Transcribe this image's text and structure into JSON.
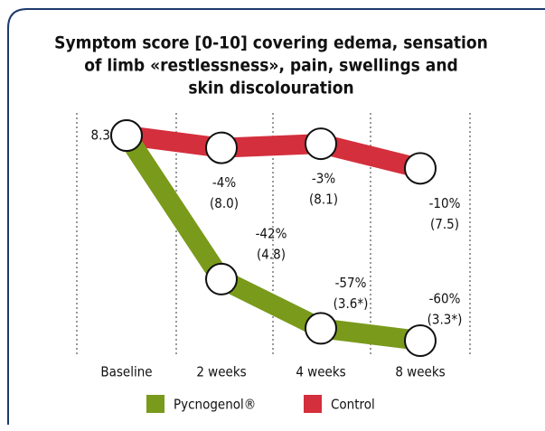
{
  "chart_data": {
    "type": "line",
    "title": [
      "Symptom score [0-10] covering edema, sensation",
      "of limb «restlessness», pain, swellings and",
      "skin discolouration"
    ],
    "categories": [
      "Baseline",
      "2 weeks",
      "4 weeks",
      "8 weeks"
    ],
    "series": [
      {
        "name": "Control",
        "color": "#d42f3c",
        "values": [
          8.3,
          8.0,
          8.1,
          7.5
        ],
        "value_labels": [
          null,
          "(8.0)",
          "(8.1)",
          "(7.5)"
        ],
        "change_labels": [
          null,
          "-4%",
          "-3%",
          "-10%"
        ]
      },
      {
        "name": "Pycnogenol®",
        "color": "#7a9a1c",
        "values": [
          8.3,
          4.8,
          3.6,
          3.3
        ],
        "value_labels": [
          "8.3",
          "(4.8)",
          "(3.6*)",
          "(3.3*)"
        ],
        "change_labels": [
          null,
          "-42%",
          "-57%",
          "-60%"
        ]
      }
    ],
    "legend_order": [
      1,
      0
    ]
  }
}
